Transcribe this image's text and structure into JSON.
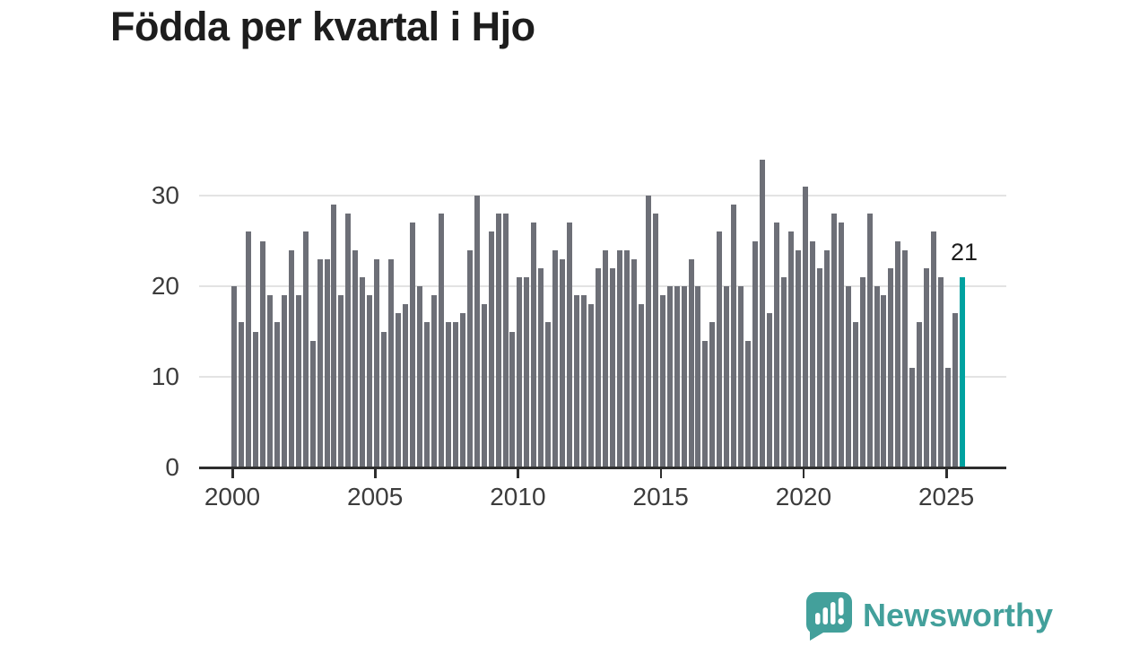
{
  "title": "Födda per kvartal i Hjo",
  "annotation": {
    "last_value_label": "21"
  },
  "branding": {
    "logo_text": "Newsworthy"
  },
  "colors": {
    "bar": "#6d6f77",
    "highlight": "#00a2a0",
    "axis": "#2e2e2e",
    "grid": "#e3e3e3",
    "title_text": "#1d1d1d",
    "tick_text": "#3c3c3c",
    "brand_teal": "#43a09b"
  },
  "chart_data": {
    "type": "bar",
    "title": "Födda per kvartal i Hjo",
    "xlabel": "",
    "ylabel": "",
    "start_period": "2000Q1",
    "end_period": "2025Q3",
    "frequency": "quarterly",
    "highlight_last": true,
    "grid": "horizontal",
    "legend": "none",
    "ylim": [
      0,
      35
    ],
    "y_ticks": [
      0,
      10,
      20,
      30
    ],
    "x_tick_labels": [
      "2000",
      "2005",
      "2010",
      "2015",
      "2020",
      "2025"
    ],
    "x_tick_every_n_bars": 20,
    "values": [
      20,
      16,
      26,
      15,
      25,
      19,
      16,
      19,
      24,
      19,
      26,
      14,
      23,
      23,
      29,
      19,
      28,
      24,
      21,
      19,
      23,
      15,
      23,
      17,
      18,
      27,
      20,
      16,
      19,
      28,
      16,
      16,
      17,
      24,
      30,
      18,
      26,
      28,
      28,
      15,
      21,
      21,
      27,
      22,
      16,
      24,
      23,
      27,
      19,
      19,
      18,
      22,
      24,
      22,
      24,
      24,
      23,
      18,
      30,
      28,
      19,
      20,
      20,
      20,
      23,
      20,
      14,
      16,
      26,
      20,
      29,
      20,
      14,
      25,
      34,
      17,
      27,
      21,
      26,
      24,
      31,
      25,
      22,
      24,
      28,
      27,
      20,
      16,
      21,
      28,
      20,
      19,
      22,
      25,
      24,
      11,
      16,
      22,
      26,
      21,
      11,
      17,
      21
    ]
  }
}
